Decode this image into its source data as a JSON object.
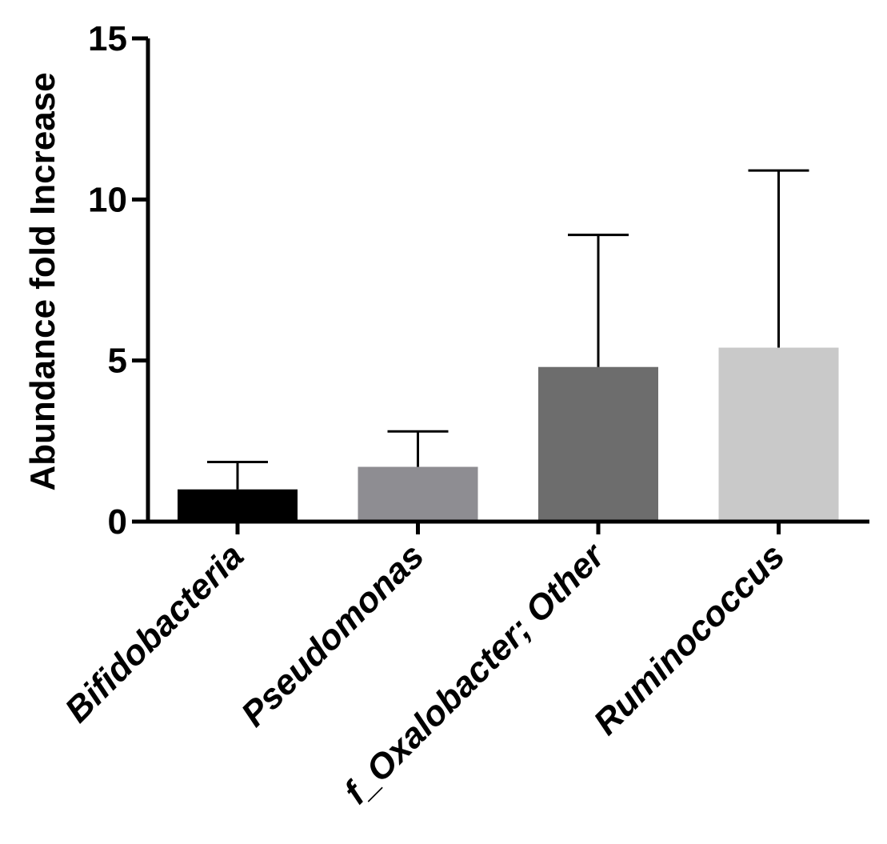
{
  "chart_data": {
    "type": "bar",
    "title": "",
    "xlabel": "",
    "ylabel": "Abundance fold Increase",
    "ylim": [
      0,
      15
    ],
    "yticks": [
      0,
      5,
      10,
      15
    ],
    "categories": [
      "Bifidobacteria",
      "Pseudomonas",
      "f_Oxalobacter; Other",
      "Ruminococcus"
    ],
    "values": [
      1.0,
      1.7,
      4.8,
      5.4
    ],
    "error_upper": [
      1.85,
      2.8,
      8.9,
      10.9
    ],
    "bar_colors": [
      "#000000",
      "#8e8d92",
      "#6d6d6d",
      "#c9c9c9"
    ],
    "grid": false,
    "legend": "none"
  }
}
